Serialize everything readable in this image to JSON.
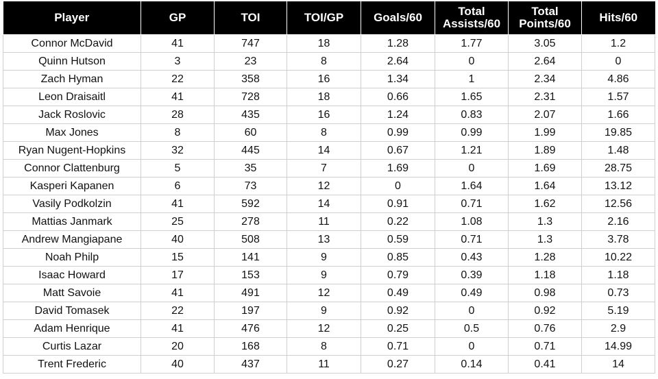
{
  "table": {
    "header": [
      "Player",
      "GP",
      "TOI",
      "TOI/GP",
      "Goals/60",
      "Total Assists/60",
      "Total Points/60",
      "Hits/60"
    ],
    "rows": [
      [
        "Connor McDavid",
        41,
        747,
        18,
        1.28,
        1.77,
        3.05,
        1.2
      ],
      [
        "Quinn Hutson",
        3,
        23,
        8,
        2.64,
        0,
        2.64,
        0
      ],
      [
        "Zach Hyman",
        22,
        358,
        16,
        1.34,
        1,
        2.34,
        4.86
      ],
      [
        "Leon Draisaitl",
        41,
        728,
        18,
        0.66,
        1.65,
        2.31,
        1.57
      ],
      [
        "Jack Roslovic",
        28,
        435,
        16,
        1.24,
        0.83,
        2.07,
        1.66
      ],
      [
        "Max Jones",
        8,
        60,
        8,
        0.99,
        0.99,
        1.99,
        19.85
      ],
      [
        "Ryan Nugent-Hopkins",
        32,
        445,
        14,
        0.67,
        1.21,
        1.89,
        1.48
      ],
      [
        "Connor Clattenburg",
        5,
        35,
        7,
        1.69,
        0,
        1.69,
        28.75
      ],
      [
        "Kasperi Kapanen",
        6,
        73,
        12,
        0,
        1.64,
        1.64,
        13.12
      ],
      [
        "Vasily Podkolzin",
        41,
        592,
        14,
        0.91,
        0.71,
        1.62,
        12.56
      ],
      [
        "Mattias Janmark",
        25,
        278,
        11,
        0.22,
        1.08,
        1.3,
        2.16
      ],
      [
        "Andrew Mangiapane",
        40,
        508,
        13,
        0.59,
        0.71,
        1.3,
        3.78
      ],
      [
        "Noah Philp",
        15,
        141,
        9,
        0.85,
        0.43,
        1.28,
        10.22
      ],
      [
        "Isaac Howard",
        17,
        153,
        9,
        0.79,
        0.39,
        1.18,
        1.18
      ],
      [
        "Matt Savoie",
        41,
        491,
        12,
        0.49,
        0.49,
        0.98,
        0.73
      ],
      [
        "David Tomasek",
        22,
        197,
        9,
        0.92,
        0,
        0.92,
        5.19
      ],
      [
        "Adam Henrique",
        41,
        476,
        12,
        0.25,
        0.5,
        0.76,
        2.9
      ],
      [
        "Curtis Lazar",
        20,
        168,
        8,
        0.71,
        0,
        0.71,
        14.99
      ],
      [
        "Trent Frederic",
        40,
        437,
        11,
        0.27,
        0.14,
        0.41,
        14
      ]
    ]
  }
}
